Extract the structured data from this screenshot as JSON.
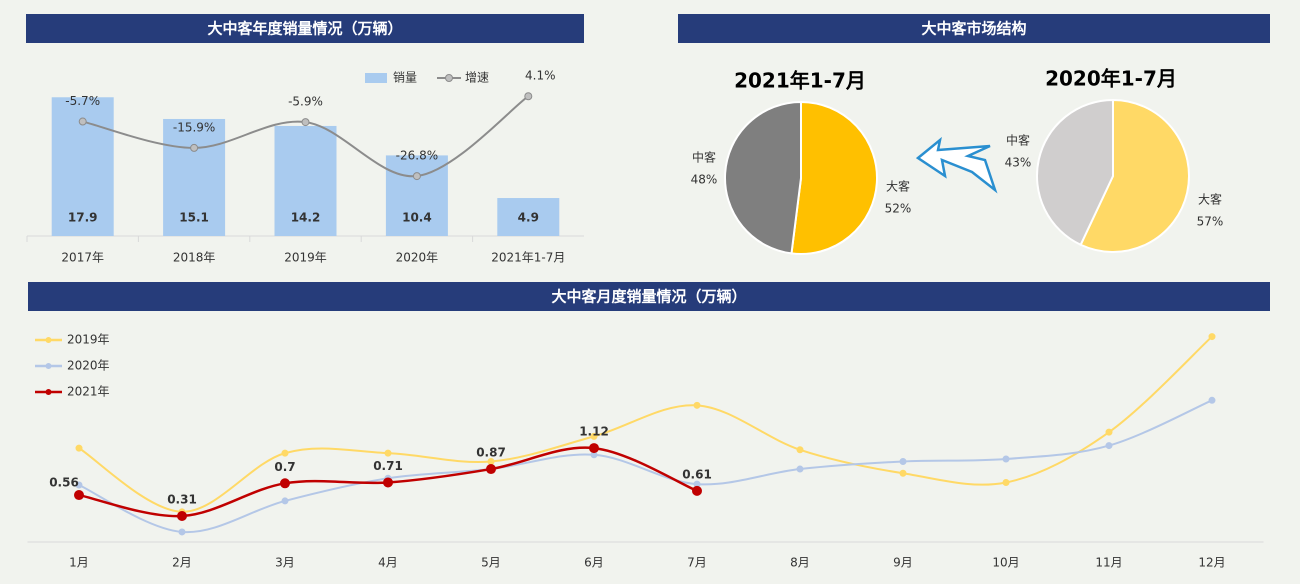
{
  "chart_data": [
    {
      "type": "bar",
      "title": "大中客年度销量情况（万辆）",
      "categories": [
        "2017年",
        "2018年",
        "2019年",
        "2020年",
        "2021年1-7月"
      ],
      "ylim": [
        0,
        20
      ],
      "y2lim": [
        -50,
        10
      ],
      "series": [
        {
          "name": "销量",
          "type": "bar",
          "color": "#a9cbef",
          "values": [
            17.9,
            15.1,
            14.2,
            10.4,
            4.9
          ]
        },
        {
          "name": "增速",
          "type": "line",
          "axis": "y2",
          "color": "#8c8c8c",
          "values": [
            -5.7,
            -15.9,
            -5.9,
            -26.8,
            4.1
          ],
          "value_labels": [
            "-5.7%",
            "-15.9%",
            "-5.9%",
            "-26.8%",
            "4.1%"
          ]
        }
      ]
    },
    {
      "type": "pie",
      "panel_title": "大中客市场结构",
      "title": "2021年1-7月",
      "categories": [
        "大客",
        "中客"
      ],
      "values": [
        52,
        48
      ],
      "value_labels": [
        "52%",
        "48%"
      ],
      "colors": [
        "#ffc000",
        "#7f7f7f"
      ]
    },
    {
      "type": "pie",
      "title": "2020年1-7月",
      "categories": [
        "大客",
        "中客"
      ],
      "values": [
        57,
        43
      ],
      "value_labels": [
        "57%",
        "43%"
      ],
      "colors": [
        "#ffd966",
        "#d0cece"
      ]
    },
    {
      "type": "line",
      "title": "大中客月度销量情况（万辆）",
      "categories": [
        "1月",
        "2月",
        "3月",
        "4月",
        "5月",
        "6月",
        "7月",
        "8月",
        "9月",
        "10月",
        "11月",
        "12月"
      ],
      "ylim": [
        0,
        2.6
      ],
      "series": [
        {
          "name": "2019年",
          "color": "#ffd966",
          "values": [
            1.12,
            0.36,
            1.06,
            1.06,
            0.96,
            1.26,
            1.63,
            1.1,
            0.82,
            0.71,
            1.31,
            2.45
          ]
        },
        {
          "name": "2020年",
          "color": "#b4c7e7",
          "values": [
            0.68,
            0.12,
            0.49,
            0.76,
            0.87,
            1.04,
            0.69,
            0.87,
            0.96,
            0.99,
            1.15,
            1.69
          ]
        },
        {
          "name": "2021年",
          "color": "#c00000",
          "labels": true,
          "values": [
            0.56,
            0.31,
            0.7,
            0.71,
            0.87,
            1.12,
            0.61,
            null,
            null,
            null,
            null,
            null
          ]
        }
      ]
    }
  ]
}
